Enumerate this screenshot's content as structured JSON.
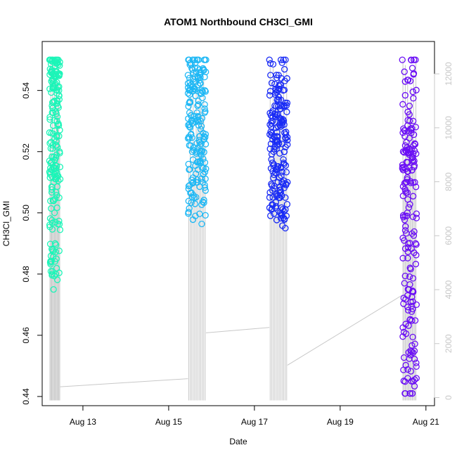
{
  "chart_data": {
    "type": "scatter",
    "title": "ATOM1 Northbound CH3Cl_GMI",
    "xlabel": "Date",
    "ylabel": "CH3Cl_GMI",
    "x_ticks": [
      "Aug 13",
      "Aug 15",
      "Aug 17",
      "Aug 19",
      "Aug 21"
    ],
    "x_tick_days": [
      13,
      15,
      17,
      19,
      21
    ],
    "xlim_days": [
      12.05,
      21.2
    ],
    "ylim": [
      0.437,
      0.556
    ],
    "y_ticks": [
      0.44,
      0.46,
      0.48,
      0.5,
      0.52,
      0.54
    ],
    "y2lim": [
      -300,
      13200
    ],
    "y2_ticks": [
      0,
      2000,
      4000,
      6000,
      8000,
      10000,
      12000
    ],
    "right_axis_color": "#c8c8c8",
    "altitude_line_color": "#c8c8c8",
    "series": [
      {
        "color": "#1cf5b8",
        "x_range_days": [
          12.22,
          12.47
        ],
        "values": [
          0.517,
          0.547,
          0.55,
          0.543,
          0.535,
          0.521,
          0.515,
          0.51,
          0.5,
          0.49,
          0.48,
          0.485,
          0.53,
          0.549,
          0.55,
          0.54,
          0.52,
          0.511
        ]
      },
      {
        "color": "#1fb8f5",
        "x_range_days": [
          15.45,
          15.87
        ],
        "values": [
          0.545,
          0.55,
          0.54,
          0.53,
          0.52,
          0.51,
          0.505,
          0.499,
          0.52,
          0.535,
          0.55,
          0.545,
          0.53,
          0.52,
          0.51,
          0.525,
          0.54,
          0.55
        ]
      },
      {
        "color": "#1a2cf5",
        "x_range_days": [
          17.35,
          17.77
        ],
        "values": [
          0.55,
          0.545,
          0.53,
          0.524,
          0.52,
          0.535,
          0.54,
          0.525,
          0.51,
          0.505,
          0.5,
          0.515,
          0.53,
          0.54,
          0.52,
          0.505,
          0.499,
          0.51
        ]
      },
      {
        "color": "#6a0ef5",
        "x_range_days": [
          20.45,
          20.78
        ],
        "values": [
          0.55,
          0.52,
          0.515,
          0.525,
          0.51,
          0.52,
          0.5,
          0.49,
          0.475,
          0.465,
          0.455,
          0.445,
          0.441,
          0.53,
          0.55,
          0.51,
          0.49,
          0.47
        ]
      }
    ]
  }
}
